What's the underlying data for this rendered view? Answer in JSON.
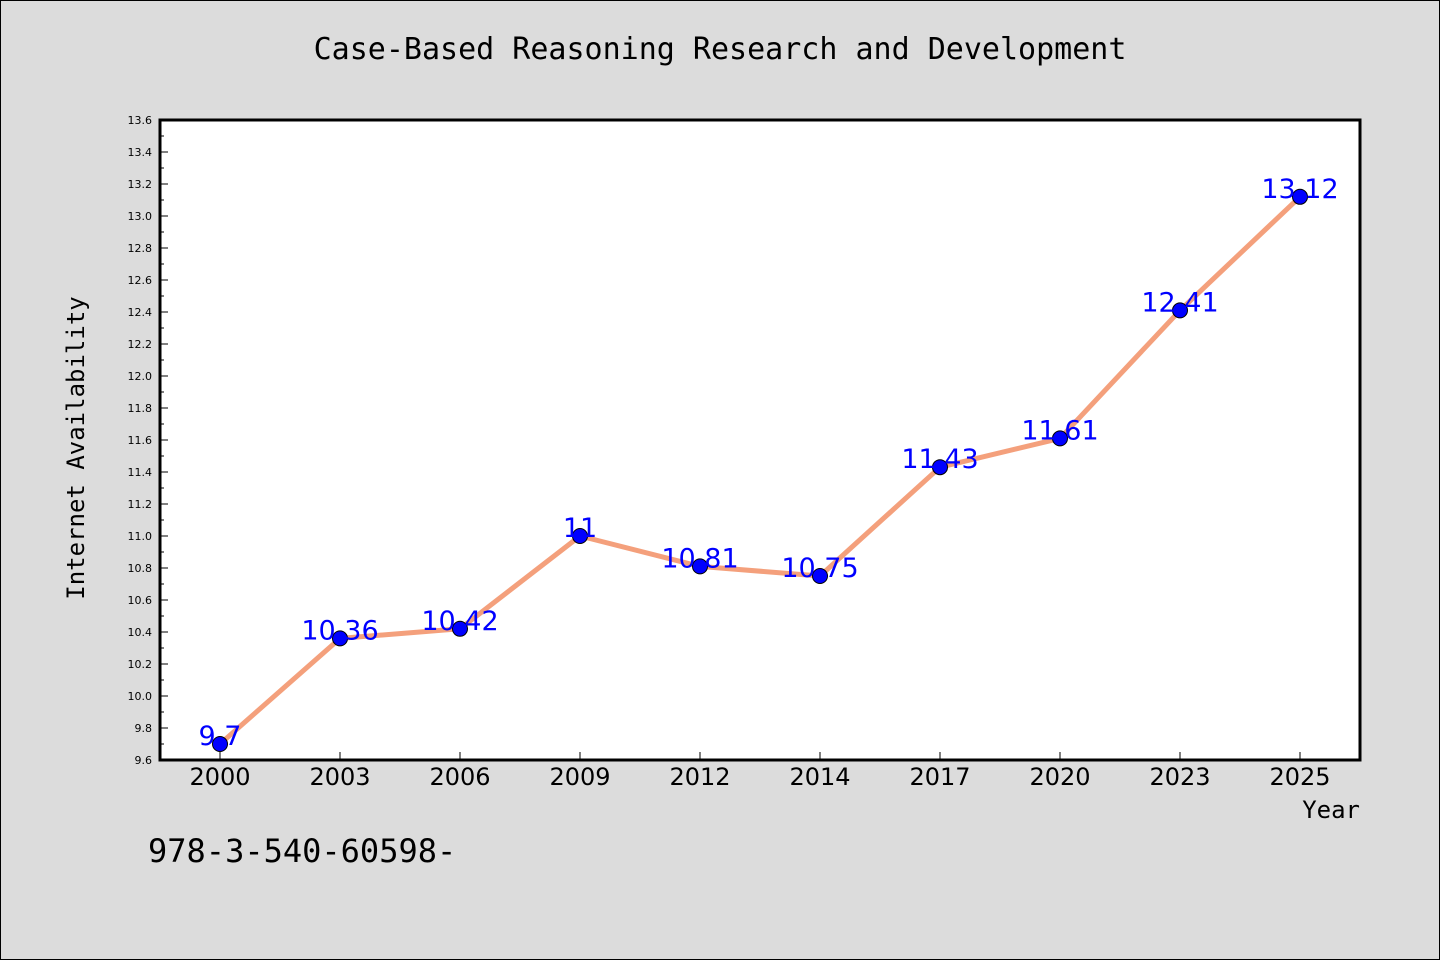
{
  "footnote": "978-3-540-60598-",
  "colors": {
    "line": "#f4a07c",
    "marker": "#0000ff",
    "data_label": "#0000ff",
    "plot_background": "#ffffff",
    "page_background": "#dcdcdc"
  },
  "chart_data": {
    "type": "line",
    "title": "Case-Based Reasoning Research and Development",
    "xlabel": "Year",
    "ylabel": "Internet Availability",
    "categories": [
      "2000",
      "2003",
      "2006",
      "2009",
      "2012",
      "2014",
      "2017",
      "2020",
      "2023",
      "2025"
    ],
    "series": [
      {
        "values": [
          9.7,
          10.36,
          10.42,
          11,
          10.81,
          10.75,
          11.43,
          11.61,
          12.41,
          13.12
        ],
        "labels": [
          "9.7",
          "10.36",
          "10.42",
          "11",
          "10.81",
          "10.75",
          "11.43",
          "11.61",
          "12.41",
          "13.12"
        ]
      }
    ],
    "ylim": [
      9.6,
      13.6
    ],
    "yticks": [
      "9.6",
      "9.8",
      "10.0",
      "10.2",
      "10.4",
      "10.6",
      "10.8",
      "11.0",
      "11.2",
      "11.4",
      "11.6",
      "11.8",
      "12.0",
      "12.2",
      "12.4",
      "12.6",
      "12.8",
      "13.0",
      "13.2",
      "13.4",
      "13.6"
    ],
    "grid": false,
    "legend": "none"
  }
}
